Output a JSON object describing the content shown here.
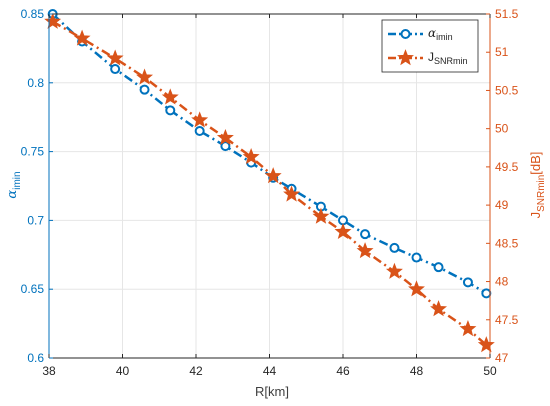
{
  "chart_data": {
    "type": "line",
    "title": "",
    "xlabel": "R[km]",
    "x_ticks": [
      38,
      40,
      42,
      44,
      46,
      48,
      50
    ],
    "xlim": [
      38,
      50
    ],
    "left_axis": {
      "label_main": "α",
      "label_sub": "imin",
      "lim": [
        0.6,
        0.85
      ],
      "ticks": [
        0.6,
        0.65,
        0.7,
        0.75,
        0.8,
        0.85
      ],
      "tick_labels": [
        "0.6",
        "0.65",
        "0.7",
        "0.75",
        "0.8",
        "0.85"
      ],
      "color": "#0072BD"
    },
    "right_axis": {
      "label_main": "J",
      "label_sub": "SNRmin",
      "label_suffix": "[dB]",
      "lim": [
        47,
        51.5
      ],
      "ticks": [
        47,
        47.5,
        48,
        48.5,
        49,
        49.5,
        50,
        50.5,
        51,
        51.5
      ],
      "tick_labels": [
        "47",
        "47.5",
        "48",
        "48.5",
        "49",
        "49.5",
        "50",
        "50.5",
        "51",
        "51.5"
      ],
      "color": "#D95319"
    },
    "grid": true,
    "legend_position": "top-right",
    "series": [
      {
        "name_main": "α",
        "name_sub": "imin",
        "axis": "left",
        "marker": "circle",
        "line_style": "dash-dot",
        "color": "#0072BD",
        "x": [
          38.1,
          38.9,
          39.8,
          40.6,
          41.3,
          42.1,
          42.8,
          43.5,
          44.1,
          44.6,
          45.4,
          46.0,
          46.6,
          47.4,
          48.0,
          48.6,
          49.4,
          49.9
        ],
        "y": [
          0.85,
          0.83,
          0.81,
          0.795,
          0.78,
          0.765,
          0.754,
          0.742,
          0.731,
          0.723,
          0.71,
          0.7,
          0.69,
          0.68,
          0.673,
          0.666,
          0.655,
          0.647
        ]
      },
      {
        "name_main": "J",
        "name_sub": "SNRmin",
        "axis": "right",
        "marker": "star",
        "line_style": "dash-dot",
        "color": "#D95319",
        "x": [
          38.1,
          38.9,
          39.8,
          40.6,
          41.3,
          42.1,
          42.8,
          43.5,
          44.1,
          44.6,
          45.4,
          46.0,
          46.6,
          47.4,
          48.0,
          48.6,
          49.4,
          49.9
        ],
        "y": [
          51.4,
          51.18,
          50.92,
          50.67,
          50.41,
          50.11,
          49.88,
          49.63,
          49.38,
          49.14,
          48.85,
          48.65,
          48.4,
          48.13,
          47.9,
          47.64,
          47.38,
          47.17
        ]
      }
    ]
  }
}
